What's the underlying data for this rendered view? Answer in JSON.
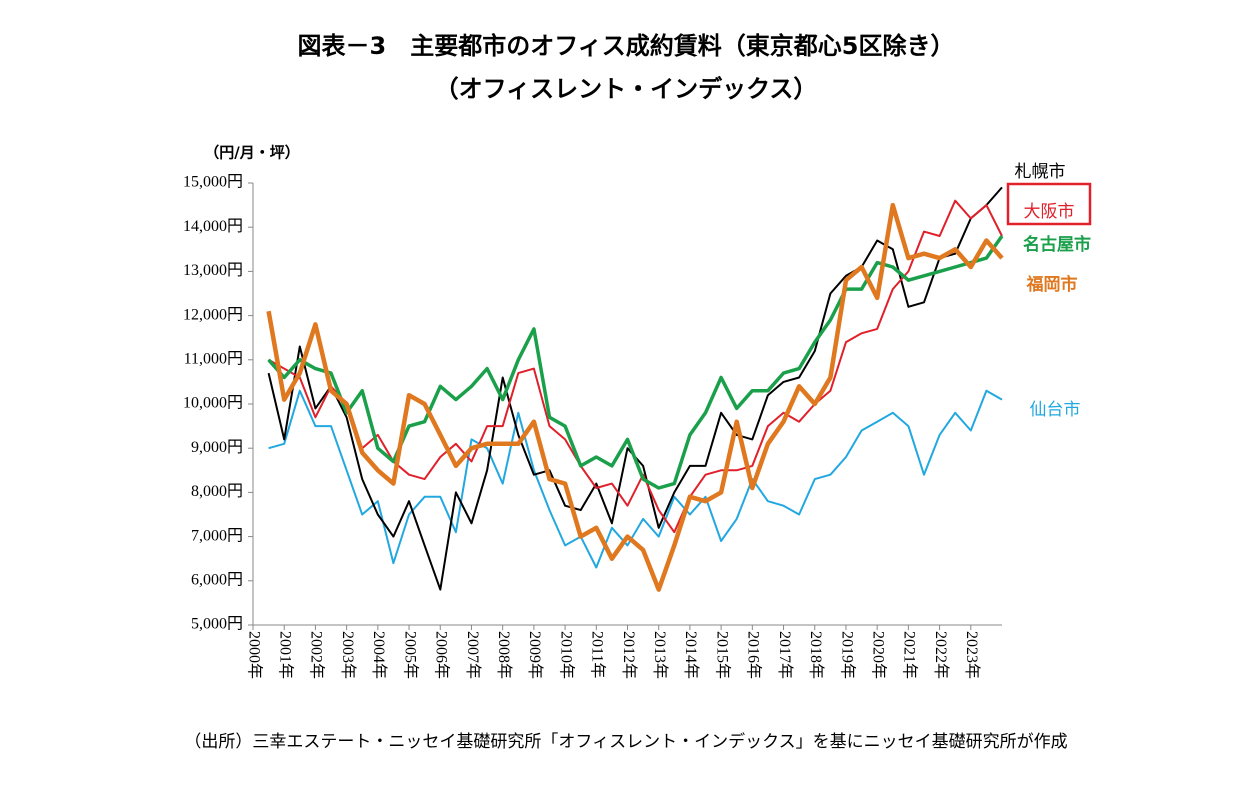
{
  "chart_data": {
    "type": "line",
    "title": "図表－3　主要都市のオフィス成約賃料（東京都心5区除き）",
    "subtitle": "（オフィスレント・インデックス）",
    "y_label": "（円/月・坪）",
    "source": "（出所）三幸エステート・ニッセイ基礎研究所「オフィスレント・インデックス」を基にニッセイ基礎研究所が作成",
    "categories": [
      "2000年",
      null,
      "2001年",
      null,
      "2002年",
      null,
      "2003年",
      null,
      "2004年",
      null,
      "2005年",
      null,
      "2006年",
      null,
      "2007年",
      null,
      "2008年",
      null,
      "2009年",
      null,
      "2010年",
      null,
      "2011年",
      null,
      "2012年",
      null,
      "2013年",
      null,
      "2014年",
      null,
      "2015年",
      null,
      "2016年",
      null,
      "2017年",
      null,
      "2018年",
      null,
      "2019年",
      null,
      "2020年",
      null,
      "2021年",
      null,
      "2022年",
      null,
      "2023年",
      null
    ],
    "ylim": [
      5000,
      15000
    ],
    "yticks": [
      {
        "value": 5000,
        "label": "5,000円"
      },
      {
        "value": 6000,
        "label": "6,000円"
      },
      {
        "value": 7000,
        "label": "7,000円"
      },
      {
        "value": 8000,
        "label": "8,000円"
      },
      {
        "value": 9000,
        "label": "9,000円"
      },
      {
        "value": 10000,
        "label": "10,000円"
      },
      {
        "value": 11000,
        "label": "11,000円"
      },
      {
        "value": 12000,
        "label": "12,000円"
      },
      {
        "value": 13000,
        "label": "13,000円"
      },
      {
        "value": 14000,
        "label": "14,000円"
      },
      {
        "value": 15000,
        "label": "15,000円"
      }
    ],
    "grid": false,
    "series": [
      {
        "name": "札幌市",
        "color": "#000000",
        "values": [
          10700,
          9200,
          11300,
          9900,
          10400,
          9700,
          8300,
          7500,
          7000,
          7800,
          6800,
          5800,
          8000,
          7300,
          8500,
          10600,
          9300,
          8400,
          8500,
          7700,
          7600,
          8200,
          7300,
          9000,
          8600,
          7200,
          8000,
          8600,
          8600,
          9800,
          9300,
          9200,
          10200,
          10500,
          10600,
          11200,
          12500,
          12900,
          13100,
          13700,
          13500,
          12200,
          12300,
          13300,
          13400,
          14200,
          14500,
          14900
        ]
      },
      {
        "name": "大阪市",
        "color": "#e0202a",
        "values": [
          11000,
          10800,
          10600,
          9700,
          10400,
          10000,
          9000,
          9300,
          8700,
          8400,
          8300,
          8800,
          9100,
          8700,
          9500,
          9500,
          10700,
          10800,
          9500,
          9200,
          8600,
          8100,
          8200,
          7700,
          8400,
          7600,
          7100,
          7900,
          8400,
          8500,
          8500,
          8600,
          9500,
          9800,
          9600,
          10000,
          10300,
          11400,
          11600,
          11700,
          12600,
          13000,
          13900,
          13800,
          14600,
          14200,
          14500,
          13800
        ]
      },
      {
        "name": "名古屋市",
        "color": "#1aa04a",
        "values": [
          11000,
          10600,
          11000,
          10800,
          10700,
          9800,
          10300,
          9000,
          8700,
          9500,
          9600,
          10400,
          10100,
          10400,
          10800,
          10100,
          11000,
          11700,
          9700,
          9500,
          8600,
          8800,
          8600,
          9200,
          8300,
          8100,
          8200,
          9300,
          9800,
          10600,
          9900,
          10300,
          10300,
          10700,
          10800,
          11400,
          11900,
          12600,
          12600,
          13200,
          13100,
          12800,
          12900,
          13000,
          13100,
          13200,
          13300,
          13800
        ]
      },
      {
        "name": "福岡市",
        "color": "#e07820",
        "values": [
          12100,
          10100,
          10700,
          11800,
          10300,
          10000,
          8900,
          8500,
          8200,
          10200,
          10000,
          9300,
          8600,
          9000,
          9100,
          9100,
          9100,
          9600,
          8300,
          8200,
          7000,
          7200,
          6500,
          7000,
          6700,
          5800,
          6800,
          7900,
          7800,
          8000,
          9600,
          8100,
          9100,
          9600,
          10400,
          10000,
          10600,
          12800,
          13100,
          12400,
          14500,
          13300,
          13400,
          13300,
          13500,
          13100,
          13700,
          13300
        ]
      },
      {
        "name": "仙台市",
        "color": "#22a8e0",
        "values": [
          9000,
          9100,
          10300,
          9500,
          9500,
          8500,
          7500,
          7800,
          6400,
          7500,
          7900,
          7900,
          7100,
          9200,
          9000,
          8200,
          9800,
          8500,
          7600,
          6800,
          7000,
          6300,
          7200,
          6800,
          7400,
          7000,
          7900,
          7500,
          7900,
          6900,
          7400,
          8300,
          7800,
          7700,
          7500,
          8300,
          8400,
          8800,
          9400,
          9600,
          9800,
          9500,
          8400,
          9300,
          9800,
          9400,
          10300,
          10100
        ]
      }
    ]
  }
}
